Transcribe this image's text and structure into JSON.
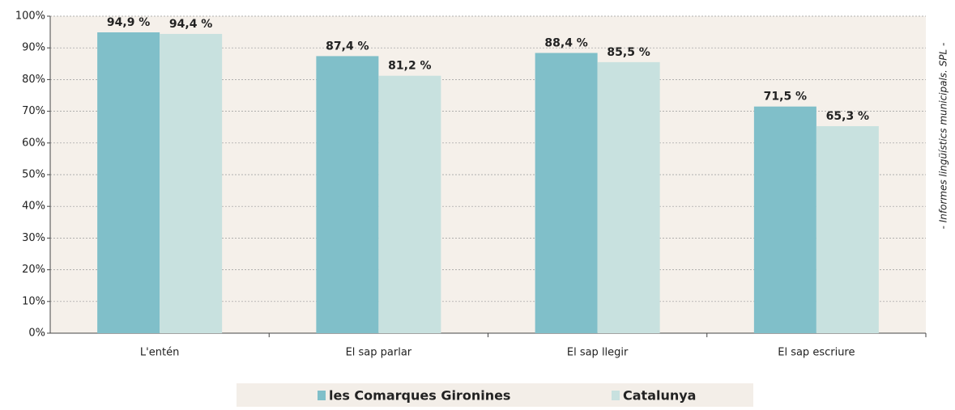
{
  "chart_data": {
    "type": "bar",
    "categories": [
      "L'entén",
      "El sap parlar",
      "El sap llegir",
      "El sap escriure"
    ],
    "series": [
      {
        "name": "les Comarques Gironines",
        "color": "#80bfc9",
        "values": [
          94.9,
          87.4,
          88.4,
          71.5
        ],
        "value_labels": [
          "94,9 %",
          "87,4 %",
          "88,4 %",
          "71,5 %"
        ]
      },
      {
        "name": "Catalunya",
        "color": "#c8e1df",
        "values": [
          94.4,
          81.2,
          85.5,
          65.3
        ],
        "value_labels": [
          "94,4 %",
          "81,2 %",
          "85,5 %",
          "65,3 %"
        ]
      }
    ],
    "ylim": [
      0,
      100
    ],
    "yticks": [
      {
        "value": 0,
        "label": "0%"
      },
      {
        "value": 10,
        "label": "10%"
      },
      {
        "value": 20,
        "label": "20%"
      },
      {
        "value": 30,
        "label": "30%"
      },
      {
        "value": 40,
        "label": "40%"
      },
      {
        "value": 50,
        "label": "50%"
      },
      {
        "value": 60,
        "label": "60%"
      },
      {
        "value": 70,
        "label": "70%"
      },
      {
        "value": 80,
        "label": "80%"
      },
      {
        "value": 90,
        "label": "90%"
      },
      {
        "value": 100,
        "label": "100%"
      }
    ],
    "grid": true,
    "annotation": "- Informes lingüístics municipals. SPL -",
    "legend": "bottom"
  }
}
